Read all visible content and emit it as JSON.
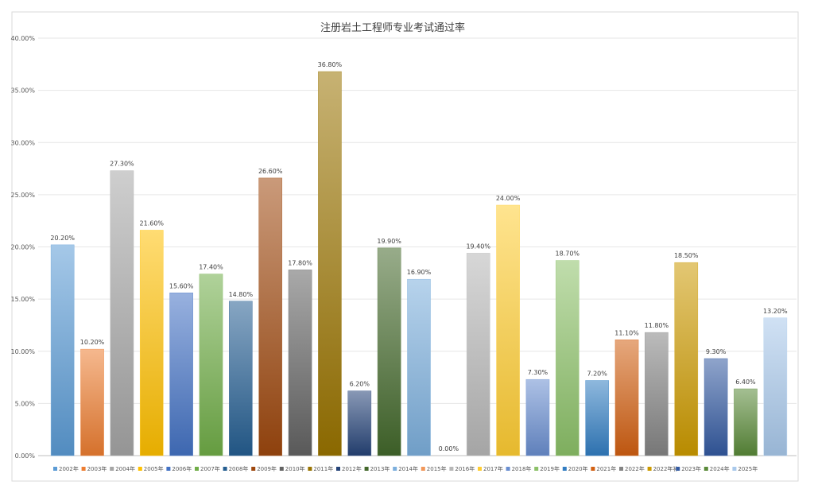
{
  "chart_data": {
    "type": "bar",
    "title": "注册岩土工程师专业考试通过率",
    "xlabel": "",
    "ylabel": "",
    "ylim": [
      0,
      40
    ],
    "yticks": [
      "0.00%",
      "5.00%",
      "10.00%",
      "15.00%",
      "20.00%",
      "25.00%",
      "30.00%",
      "35.00%",
      "40.00%"
    ],
    "grid": true,
    "legend_position": "bottom",
    "categories": [
      "2002年",
      "2003年",
      "2004年",
      "2005年",
      "2006年",
      "2007年",
      "2008年",
      "2009年",
      "2010年",
      "2011年",
      "2012年",
      "2013年",
      "2014年",
      "2015年",
      "2016年",
      "2017年",
      "2018年",
      "2019年",
      "2020年",
      "2021年",
      "2022年",
      "2022年补",
      "2023年",
      "2024年",
      "2025年"
    ],
    "values": [
      20.2,
      10.2,
      27.3,
      21.6,
      15.6,
      17.4,
      14.8,
      26.6,
      17.8,
      36.8,
      6.2,
      19.9,
      16.9,
      0.0,
      19.4,
      24.0,
      7.3,
      18.7,
      7.2,
      11.1,
      11.8,
      18.5,
      9.3,
      6.4,
      13.2
    ],
    "data_labels": [
      "20.20%",
      "10.20%",
      "27.30%",
      "21.60%",
      "15.60%",
      "17.40%",
      "14.80%",
      "26.60%",
      "17.80%",
      "36.80%",
      "6.20%",
      "19.90%",
      "16.90%",
      "0.00%",
      "19.40%",
      "24.00%",
      "7.30%",
      "18.70%",
      "7.20%",
      "11.10%",
      "11.80%",
      "18.50%",
      "9.30%",
      "6.40%",
      "13.20%"
    ],
    "colors": [
      "#5b9bd5",
      "#ed7d31",
      "#a5a5a5",
      "#ffc000",
      "#4472c4",
      "#70ad47",
      "#255e91",
      "#9e480e",
      "#636363",
      "#997300",
      "#264478",
      "#43682b",
      "#7cafdd",
      "#f1975a",
      "#b7b7b7",
      "#ffcd33",
      "#698ed0",
      "#8cc168",
      "#327dc2",
      "#d26012",
      "#848484",
      "#cc9a00",
      "#335aa1",
      "#5a8a39",
      "#a9c9eb"
    ]
  }
}
